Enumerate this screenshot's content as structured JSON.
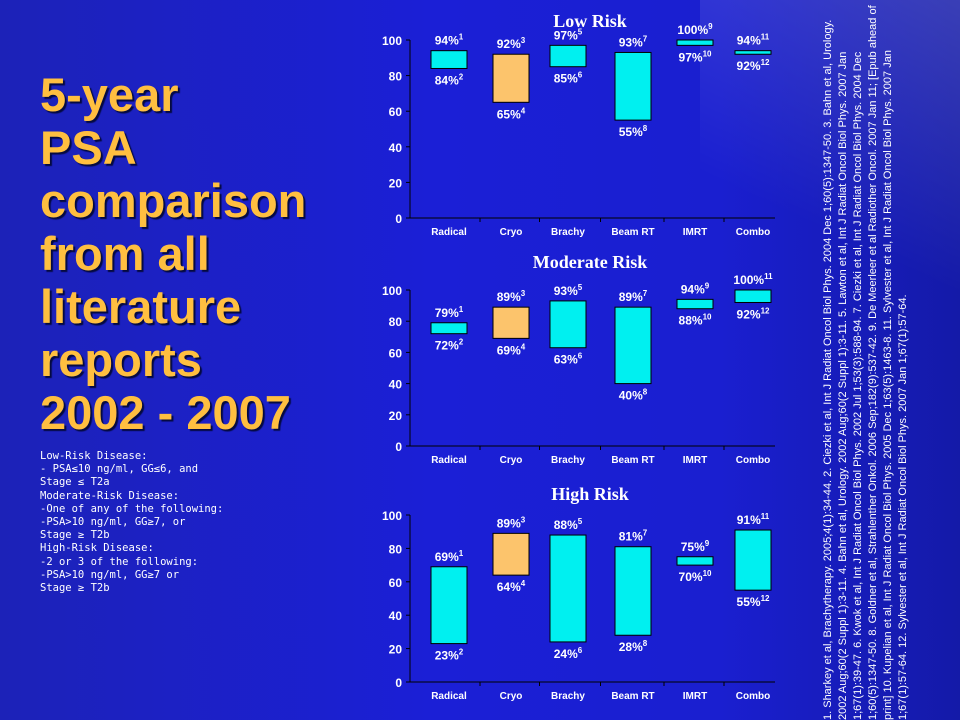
{
  "title_lines": [
    "5-year",
    "PSA",
    "comparison",
    "from all",
    "literature",
    "reports",
    "2002 - 2007"
  ],
  "definitions": [
    "Low-Risk Disease:",
    "- PSA≤10 ng/ml, GG≤6, and",
    "Stage ≤ T2a",
    "",
    "Moderate-Risk Disease:",
    "-One of any of the following:",
    "-PSA>10 ng/ml, GG≥7, or",
    "Stage ≥ T2b",
    "",
    "High-Risk Disease:",
    "-2 or 3 of the following:",
    "-PSA>10 ng/ml, GG≥7 or",
    "Stage ≥ T2b"
  ],
  "references": "1. Sharkey et al, Brachytherapy. 2005;4(1):34-44. 2. Ciezki et al, Int J Radiat Oncol Biol Phys. 2004 Dec 1;60(5):1347-50. 3. Bahn et al, Urology. 2002 Aug;60(2 Suppl 1):3-11. 4. Bahn et al, Urology. 2002 Aug;60(2 Suppl 1):3-11. 5. Lawton et al, Int J Radiat Oncol Biol Phys. 2007 Jan 1;67(1):39-47. 6. Kwok et al, Int J Radiat Oncol Biol Phys. 2002 Jul 1;53(3):588-94. 7. Ciezki et al, Int J Radiat Oncol Biol Phys. 2004 Dec 1;60(5):1347-50. 8. Goldner et al, Strahlenther Onkol. 2006 Sep;182(9):537-42. 9. De Meerleer et al Radiother Oncol. 2007 Jan 11; [Epub ahead of print] 10. Kupelian et al, Int J Radiat Oncol Biol Phys. 2005 Dec 1;63(5):1463-8. 11. Sylvester et al, Int J Radiat Oncol Biol Phys. 2007 Jan 1;67(1):57-64. 12.  Sylvester et al, Int J Radiat Oncol Biol Phys. 2007 Jan 1;67(1):57-64.",
  "colors": {
    "cyan": "#00f0f0",
    "orange": "#fcc46c",
    "title": "#ffbf40",
    "background": "#1b1fd6"
  },
  "chart_data": [
    {
      "type": "bar",
      "title": "Low Risk",
      "categories": [
        "Radical",
        "Cryo",
        "Brachy",
        "Beam RT",
        "IMRT",
        "Combo"
      ],
      "ylim": [
        0,
        100
      ],
      "yticks": [
        0,
        20,
        40,
        60,
        80,
        100
      ],
      "grid": false,
      "bars": [
        {
          "category": "Radical",
          "high": 94,
          "low": 84,
          "high_ref": "1",
          "low_ref": "2",
          "color": "cyan"
        },
        {
          "category": "Cryo",
          "high": 92,
          "low": 65,
          "high_ref": "3",
          "low_ref": "4",
          "color": "orange"
        },
        {
          "category": "Brachy",
          "high": 97,
          "low": 85,
          "high_ref": "5",
          "low_ref": "6",
          "color": "cyan"
        },
        {
          "category": "Beam RT",
          "high": 93,
          "low": 55,
          "high_ref": "7",
          "low_ref": "8",
          "color": "cyan"
        },
        {
          "category": "IMRT",
          "high": 100,
          "low": 97,
          "high_ref": "9",
          "low_ref": "10",
          "color": "cyan"
        },
        {
          "category": "Combo",
          "high": 94,
          "low": 92,
          "high_ref": "11",
          "low_ref": "12",
          "color": "cyan"
        }
      ]
    },
    {
      "type": "bar",
      "title": "Moderate Risk",
      "categories": [
        "Radical",
        "Cryo",
        "Brachy",
        "Beam RT",
        "IMRT",
        "Combo"
      ],
      "ylim": [
        0,
        100
      ],
      "yticks": [
        0,
        20,
        40,
        60,
        80,
        100
      ],
      "grid": false,
      "bars": [
        {
          "category": "Radical",
          "high": 79,
          "low": 72,
          "high_ref": "1",
          "low_ref": "2",
          "color": "cyan"
        },
        {
          "category": "Cryo",
          "high": 89,
          "low": 69,
          "high_ref": "3",
          "low_ref": "4",
          "color": "orange"
        },
        {
          "category": "Brachy",
          "high": 93,
          "low": 63,
          "high_ref": "5",
          "low_ref": "6",
          "color": "cyan"
        },
        {
          "category": "Beam RT",
          "high": 89,
          "low": 40,
          "high_ref": "7",
          "low_ref": "8",
          "color": "cyan"
        },
        {
          "category": "IMRT",
          "high": 94,
          "low": 88,
          "high_ref": "9",
          "low_ref": "10",
          "color": "cyan"
        },
        {
          "category": "Combo",
          "high": 100,
          "low": 92,
          "high_ref": "11",
          "low_ref": "12",
          "color": "cyan"
        }
      ]
    },
    {
      "type": "bar",
      "title": "High Risk",
      "categories": [
        "Radical",
        "Cryo",
        "Brachy",
        "Beam RT",
        "IMRT",
        "Combo"
      ],
      "ylim": [
        0,
        100
      ],
      "yticks": [
        0,
        20,
        40,
        60,
        80,
        100
      ],
      "grid": false,
      "bars": [
        {
          "category": "Radical",
          "high": 69,
          "low": 23,
          "high_ref": "1",
          "low_ref": "2",
          "color": "cyan"
        },
        {
          "category": "Cryo",
          "high": 89,
          "low": 64,
          "high_ref": "3",
          "low_ref": "4",
          "color": "orange"
        },
        {
          "category": "Brachy",
          "high": 88,
          "low": 24,
          "high_ref": "5",
          "low_ref": "6",
          "color": "cyan"
        },
        {
          "category": "Beam RT",
          "high": 81,
          "low": 28,
          "high_ref": "7",
          "low_ref": "8",
          "color": "cyan"
        },
        {
          "category": "IMRT",
          "high": 75,
          "low": 70,
          "high_ref": "9",
          "low_ref": "10",
          "color": "cyan"
        },
        {
          "category": "Combo",
          "high": 91,
          "low": 55,
          "high_ref": "11",
          "low_ref": "12",
          "color": "cyan"
        }
      ]
    }
  ]
}
